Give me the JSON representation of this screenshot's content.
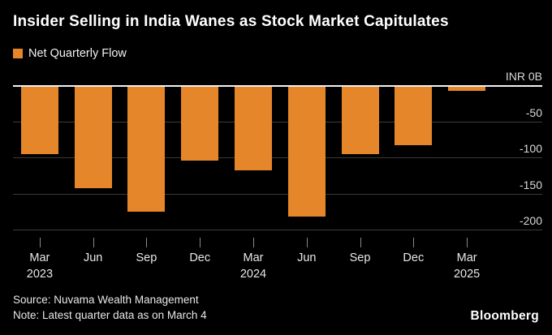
{
  "title": "Insider Selling in India Wanes as Stock Market Capitulates",
  "legend": {
    "label": "Net Quarterly Flow",
    "color": "#E5862B"
  },
  "chart_data": {
    "type": "bar",
    "series_name": "Net Quarterly Flow",
    "categories": [
      {
        "label": "Mar",
        "year": "2023"
      },
      {
        "label": "Jun",
        "year": ""
      },
      {
        "label": "Sep",
        "year": ""
      },
      {
        "label": "Dec",
        "year": ""
      },
      {
        "label": "Mar",
        "year": "2024"
      },
      {
        "label": "Jun",
        "year": ""
      },
      {
        "label": "Sep",
        "year": ""
      },
      {
        "label": "Dec",
        "year": ""
      },
      {
        "label": "Mar",
        "year": "2025"
      }
    ],
    "values": [
      -95,
      -143,
      -175,
      -104,
      -118,
      -182,
      -95,
      -83,
      -8
    ],
    "unit": "INR billions",
    "y_ticks": [
      {
        "value": 0,
        "label": "INR 0B"
      },
      {
        "value": -50,
        "label": "-50"
      },
      {
        "value": -100,
        "label": "-100"
      },
      {
        "value": -150,
        "label": "-150"
      },
      {
        "value": -200,
        "label": "-200"
      }
    ],
    "ylim": [
      -200,
      0
    ],
    "bar_color": "#E5862B",
    "grid": true,
    "y_axis_side": "right",
    "legend_position": "top-left"
  },
  "footer": {
    "source": "Source: Nuvama Wealth Management",
    "note": "Note: Latest quarter data as on March 4",
    "brand": "Bloomberg"
  }
}
